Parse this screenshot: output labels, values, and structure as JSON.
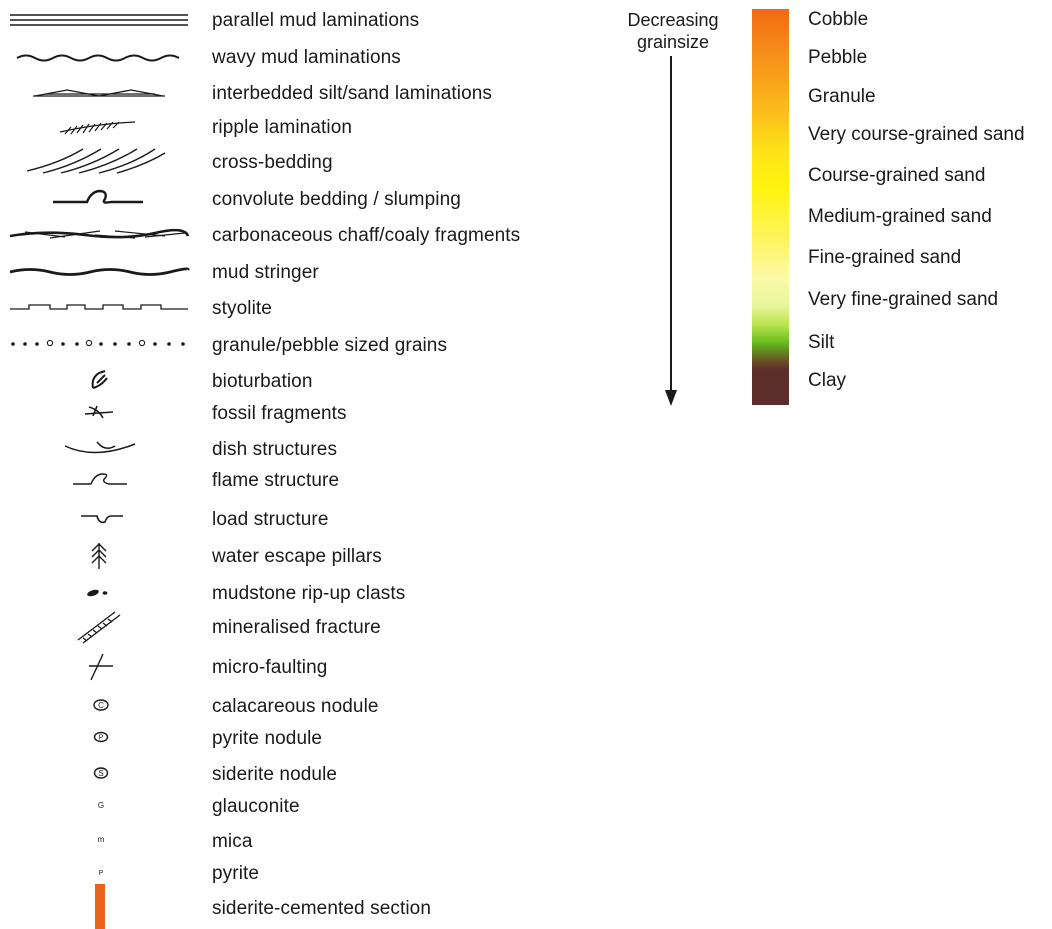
{
  "legend": {
    "items": [
      {
        "icon": "parallel-laminations-icon",
        "label": "parallel mud laminations"
      },
      {
        "icon": "wavy-laminations-icon",
        "label": "wavy mud laminations"
      },
      {
        "icon": "interbedded-laminations-icon",
        "label": "interbedded silt/sand laminations"
      },
      {
        "icon": "ripple-lamination-icon",
        "label": "ripple lamination"
      },
      {
        "icon": "cross-bedding-icon",
        "label": "cross-bedding"
      },
      {
        "icon": "convolute-bedding-icon",
        "label": "convolute bedding / slumping"
      },
      {
        "icon": "carbonaceous-chaff-icon",
        "label": "carbonaceous chaff/coaly fragments"
      },
      {
        "icon": "mud-stringer-icon",
        "label": "mud stringer"
      },
      {
        "icon": "stylolite-icon",
        "label": "styolite"
      },
      {
        "icon": "granule-pebble-grains-icon",
        "label": "granule/pebble sized grains"
      },
      {
        "icon": "bioturbation-icon",
        "label": "bioturbation"
      },
      {
        "icon": "fossil-fragments-icon",
        "label": "fossil fragments"
      },
      {
        "icon": "dish-structures-icon",
        "label": "dish structures"
      },
      {
        "icon": "flame-structure-icon",
        "label": "flame structure"
      },
      {
        "icon": "load-structure-icon",
        "label": "load structure"
      },
      {
        "icon": "water-escape-pillars-icon",
        "label": "water escape pillars"
      },
      {
        "icon": "rip-up-clasts-icon",
        "label": "mudstone rip-up clasts"
      },
      {
        "icon": "mineralised-fracture-icon",
        "label": "mineralised fracture"
      },
      {
        "icon": "micro-faulting-icon",
        "label": "micro-faulting"
      },
      {
        "icon": "calcareous-nodule-icon",
        "label": "calacareous nodule"
      },
      {
        "icon": "pyrite-nodule-icon",
        "label": "pyrite nodule"
      },
      {
        "icon": "siderite-nodule-icon",
        "label": "siderite nodule"
      },
      {
        "icon": "glauconite-icon",
        "label": "glauconite",
        "glyph": "G"
      },
      {
        "icon": "mica-icon",
        "label": "mica",
        "glyph": "m"
      },
      {
        "icon": "pyrite-icon",
        "label": "pyrite",
        "glyph": "P"
      },
      {
        "icon": "siderite-cemented-icon",
        "label": "siderite-cemented section"
      }
    ],
    "nodule_glyphs": {
      "calcareous": "C",
      "pyrite": "P",
      "siderite": "S"
    },
    "colors": {
      "siderite_cemented": "#e8641c",
      "ink": "#1a1a1a"
    }
  },
  "grainsize": {
    "arrow_label": "Decreasing grainsize",
    "scale": [
      "Cobble",
      "Pebble",
      "Granule",
      "Very course-grained sand",
      "Course-grained sand",
      "Medium-grained sand",
      "Fine-grained sand",
      "Very fine-grained sand",
      "Silt",
      "Clay"
    ],
    "colors": {
      "cobble": "#f26a12",
      "coarse_sand": "#fff30d",
      "fine_sand": "#fbfaa8",
      "silt": "#6cbf1f",
      "clay": "#5b2d2b"
    }
  }
}
